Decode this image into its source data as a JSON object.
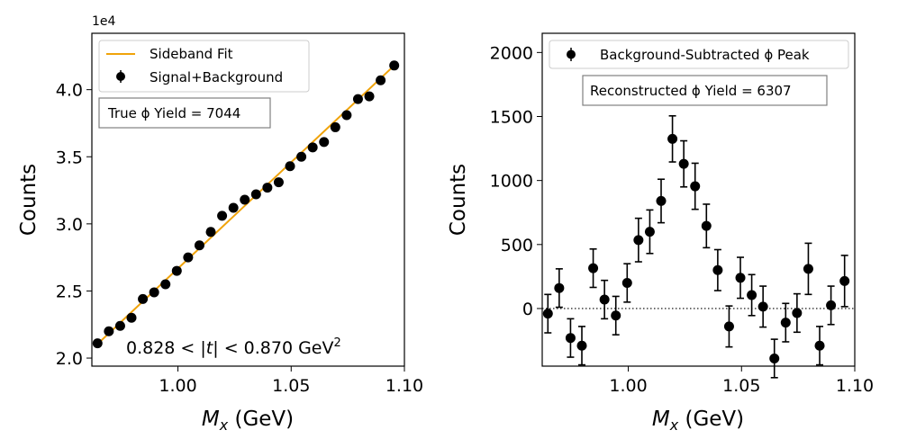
{
  "chart_data": [
    {
      "type": "scatter",
      "title": "",
      "xlabel": "M_x (GeV)",
      "xlabel_main": "M",
      "xlabel_sub": "x",
      "xlabel_unit": " (GeV)",
      "ylabel": "Counts",
      "y_offset_text": "1e4",
      "xlim": [
        0.962,
        1.1
      ],
      "ylim": [
        1.94,
        4.42
      ],
      "xticks": [
        1.0,
        1.05,
        1.1
      ],
      "xtick_labels": [
        "1.00",
        "1.05",
        "1.10"
      ],
      "yticks": [
        2.0,
        2.5,
        3.0,
        3.5,
        4.0
      ],
      "ytick_labels": [
        "2.0",
        "2.5",
        "3.0",
        "3.5",
        "4.0"
      ],
      "legend_position": "top-left",
      "legend": [
        "Sideband Fit",
        "Signal+Background"
      ],
      "annotation_box": "True ϕ Yield = 7044",
      "annotation_range_left": "0.828 < |",
      "annotation_range_t": "t",
      "annotation_range_right": "| < 0.870 GeV",
      "annotation_range_sup": "2",
      "series": [
        {
          "name": "Sideband Fit",
          "type": "line",
          "color": "#f0a30a",
          "x": [
            0.9645,
            1.0955
          ],
          "y": [
            2.105,
            4.18
          ]
        },
        {
          "name": "Signal+Background",
          "type": "scatter",
          "color": "#000000",
          "x": [
            0.9645,
            0.9695,
            0.9745,
            0.9795,
            0.9845,
            0.9895,
            0.9945,
            0.9995,
            1.0045,
            1.0095,
            1.0145,
            1.0195,
            1.0245,
            1.0295,
            1.0345,
            1.0395,
            1.0445,
            1.0495,
            1.0545,
            1.0595,
            1.0645,
            1.0695,
            1.0745,
            1.0795,
            1.0845,
            1.0895,
            1.0955
          ],
          "y": [
            2.11,
            2.2,
            2.24,
            2.3,
            2.44,
            2.49,
            2.55,
            2.65,
            2.75,
            2.84,
            2.94,
            3.06,
            3.12,
            3.18,
            3.22,
            3.27,
            3.31,
            3.43,
            3.5,
            3.57,
            3.61,
            3.72,
            3.81,
            3.93,
            3.95,
            4.07,
            4.18
          ]
        }
      ]
    },
    {
      "type": "scatter",
      "title": "",
      "xlabel": "M_x (GeV)",
      "xlabel_main": "M",
      "xlabel_sub": "x",
      "xlabel_unit": " (GeV)",
      "ylabel": "Counts",
      "xlim": [
        0.962,
        1.1
      ],
      "ylim": [
        -450,
        2150
      ],
      "xticks": [
        1.0,
        1.05,
        1.1
      ],
      "xtick_labels": [
        "1.00",
        "1.05",
        "1.10"
      ],
      "yticks": [
        0,
        500,
        1000,
        1500,
        2000
      ],
      "ytick_labels": [
        "0",
        "500",
        "1000",
        "1500",
        "2000"
      ],
      "legend_position": "top-center",
      "legend": [
        "Background-Subtracted ϕ Peak"
      ],
      "annotation_box": "Reconstructed ϕ Yield = 6307",
      "reference_line_y": 0,
      "series": [
        {
          "name": "Background-Subtracted ϕ Peak",
          "type": "errorbar",
          "color": "#000000",
          "x": [
            0.9645,
            0.9695,
            0.9745,
            0.9795,
            0.9845,
            0.9895,
            0.9945,
            0.9995,
            1.0045,
            1.0095,
            1.0145,
            1.0195,
            1.0245,
            1.0295,
            1.0345,
            1.0395,
            1.0445,
            1.0495,
            1.0545,
            1.0595,
            1.0645,
            1.0695,
            1.0745,
            1.0795,
            1.0845,
            1.0895,
            1.0955
          ],
          "y": [
            -40,
            160,
            -230,
            -290,
            315,
            70,
            -55,
            200,
            535,
            600,
            840,
            1325,
            1130,
            955,
            645,
            300,
            -140,
            240,
            105,
            15,
            -390,
            -110,
            -35,
            310,
            -290,
            25,
            215
          ],
          "yerr": [
            150,
            150,
            150,
            150,
            150,
            150,
            150,
            150,
            170,
            170,
            170,
            180,
            180,
            180,
            170,
            160,
            160,
            160,
            160,
            160,
            150,
            150,
            150,
            200,
            150,
            150,
            200
          ]
        }
      ]
    }
  ]
}
